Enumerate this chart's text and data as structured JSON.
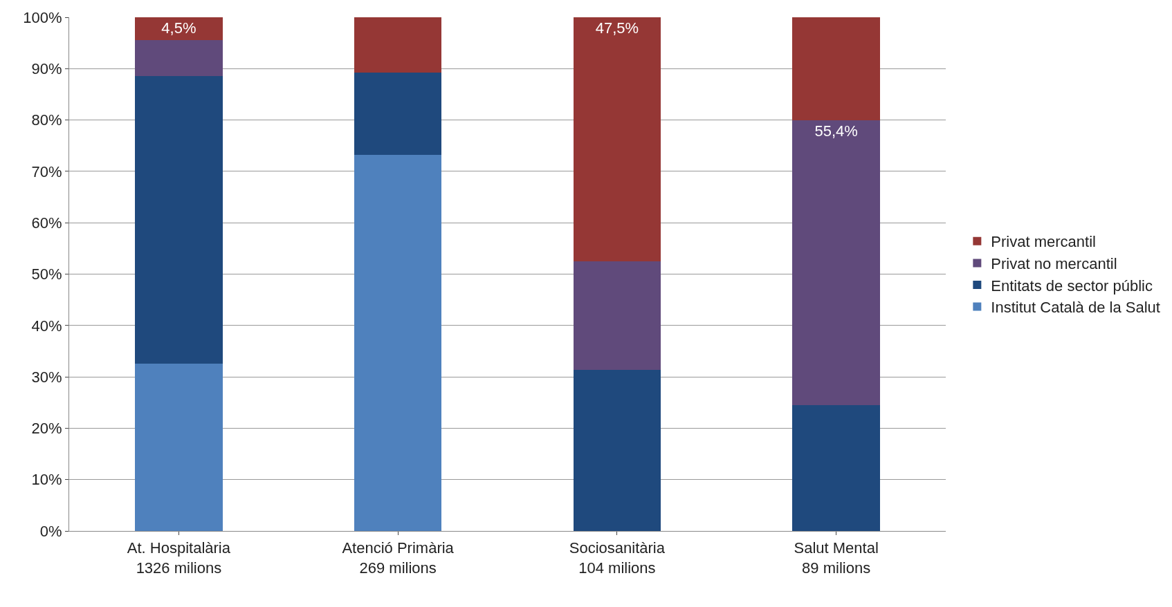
{
  "chart_data": {
    "type": "bar",
    "stacked": true,
    "categories": [
      "At. Hospitalària\n1326 milions",
      "Atenció Primària\n269 milions",
      "Sociosanitària\n104 milions",
      "Salut Mental\n89 milions"
    ],
    "series": [
      {
        "name": "Institut Català de la Salut",
        "color": "#4f81bd",
        "values": [
          32.6,
          73.2,
          0,
          0
        ]
      },
      {
        "name": "Entitats de sector públic",
        "color": "#1f497d",
        "values": [
          56.0,
          16.1,
          31.4,
          24.5
        ]
      },
      {
        "name": "Privat no mercantil",
        "color": "#604a7b",
        "values": [
          6.9,
          0,
          21.1,
          55.4
        ],
        "value_labels": [
          null,
          null,
          null,
          "55,4%"
        ]
      },
      {
        "name": "Privat mercantil",
        "color": "#953735",
        "values": [
          4.5,
          10.7,
          47.5,
          20.1
        ],
        "value_labels": [
          "4,5%",
          null,
          "47,5%",
          null
        ]
      }
    ],
    "ylim": [
      0,
      100
    ],
    "yticks": [
      {
        "value": 0,
        "label": "0%"
      },
      {
        "value": 10,
        "label": "10%"
      },
      {
        "value": 20,
        "label": "20%"
      },
      {
        "value": 30,
        "label": "30%"
      },
      {
        "value": 40,
        "label": "40%"
      },
      {
        "value": 50,
        "label": "50%"
      },
      {
        "value": 60,
        "label": "60%"
      },
      {
        "value": 70,
        "label": "70%"
      },
      {
        "value": 80,
        "label": "80%"
      },
      {
        "value": 90,
        "label": "90%"
      },
      {
        "value": 100,
        "label": "100%"
      }
    ],
    "grid": "y",
    "legend": "right"
  }
}
